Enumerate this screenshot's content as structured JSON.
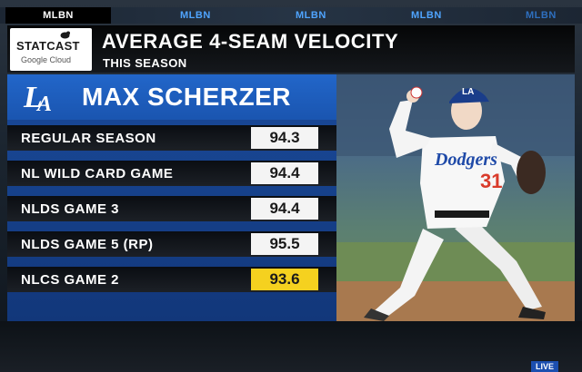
{
  "ticker": {
    "tabs": [
      "MLBN",
      "MLBN",
      "MLBN",
      "MLBN",
      "MLBN"
    ]
  },
  "header": {
    "logo_main": "STATCAST",
    "logo_sub": "Google Cloud",
    "title": "AVERAGE 4-SEAM VELOCITY",
    "subtitle": "THIS SEASON"
  },
  "player": {
    "name": "MAX SCHERZER",
    "team_logo": "LA",
    "jersey_script": "Dodgers",
    "jersey_number": "31"
  },
  "rows": [
    {
      "label": "REGULAR SEASON",
      "value": "94.3"
    },
    {
      "label": "NL WILD CARD GAME",
      "value": "94.4"
    },
    {
      "label": "NLDS GAME 3",
      "value": "94.4"
    },
    {
      "label": "NLDS GAME 5 (RP)",
      "value": "95.5"
    },
    {
      "label": "NLCS GAME 2",
      "value": "93.6"
    }
  ],
  "colors": {
    "panel_blue": "#1a55b0",
    "highlight": "#f5d11f",
    "ticker_text": "#4fa4ff"
  },
  "live_badge": "LIVE"
}
